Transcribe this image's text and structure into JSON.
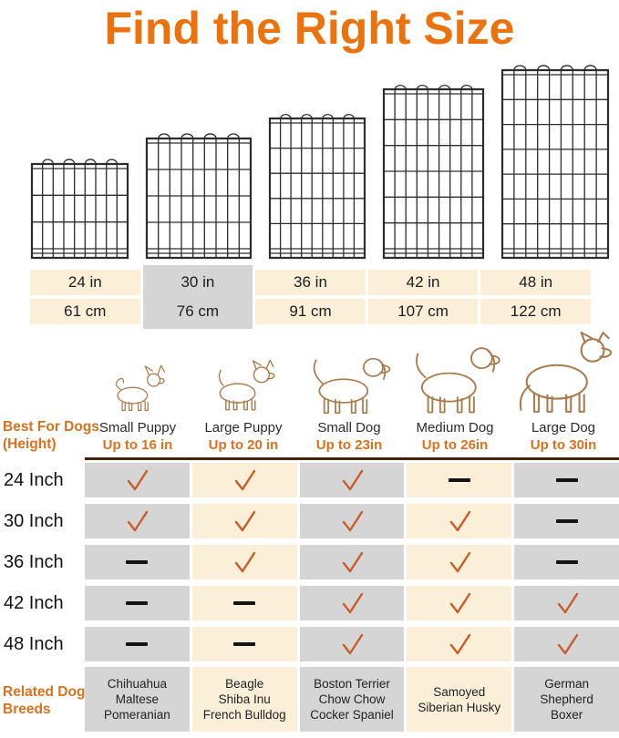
{
  "title": "Find the Right Size",
  "colors": {
    "accent_orange": "#EC720E",
    "label_orange": "#D9711F",
    "check_orange": "#C75D2A",
    "cell_cream": "#FBEFD8",
    "cell_gray": "#D5D5D5",
    "divider_brown": "#45210F",
    "dog_outline_tan": "#AA7C4D",
    "wire_dark": "#2d2d2d"
  },
  "size_table": {
    "columns": [
      {
        "inches": "24 in",
        "cm": "61 cm",
        "highlighted": false
      },
      {
        "inches": "30 in",
        "cm": "76 cm",
        "highlighted": true
      },
      {
        "inches": "36 in",
        "cm": "91 cm",
        "highlighted": false
      },
      {
        "inches": "42 in",
        "cm": "107 cm",
        "highlighted": false
      },
      {
        "inches": "48 in",
        "cm": "122 cm",
        "highlighted": false
      }
    ]
  },
  "row_header": {
    "line1": "Best For Dogs",
    "line2": "(Height)"
  },
  "dog_columns": [
    {
      "name": "Small Puppy",
      "max_height": "Up to 16 in"
    },
    {
      "name": "Large Puppy",
      "max_height": "Up to 20 in"
    },
    {
      "name": "Small Dog",
      "max_height": "Up to 23in"
    },
    {
      "name": "Medium Dog",
      "max_height": "Up to 26in"
    },
    {
      "name": "Large Dog",
      "max_height": "Up to 30in"
    }
  ],
  "compatibility": {
    "rows": [
      {
        "label": "24 Inch",
        "cells": [
          "check",
          "check",
          "check",
          "dash",
          "dash"
        ]
      },
      {
        "label": "30 Inch",
        "cells": [
          "check",
          "check",
          "check",
          "check",
          "dash"
        ]
      },
      {
        "label": "36 Inch",
        "cells": [
          "dash",
          "check",
          "check",
          "check",
          "dash"
        ]
      },
      {
        "label": "42 Inch",
        "cells": [
          "dash",
          "dash",
          "check",
          "check",
          "check"
        ]
      },
      {
        "label": "48 Inch",
        "cells": [
          "dash",
          "dash",
          "check",
          "check",
          "check"
        ]
      }
    ]
  },
  "breeds": {
    "header": {
      "line1": "Related Dog",
      "line2": "Breeds"
    },
    "cells": [
      [
        "Chihuahua",
        "Maltese",
        "Pomeranian"
      ],
      [
        "Beagle",
        "Shiba Inu",
        "French Bulldog"
      ],
      [
        "Boston Terrier",
        "Chow Chow",
        "Cocker Spaniel"
      ],
      [
        "Samoyed",
        "Siberian Husky"
      ],
      [
        "German",
        "Shepherd",
        "Boxer"
      ]
    ]
  },
  "chart_data": {
    "type": "table",
    "title": "Find the Right Size",
    "panel_heights_in": [
      24,
      30,
      36,
      42,
      48
    ],
    "panel_heights_cm": [
      61,
      76,
      91,
      107,
      122
    ],
    "highlighted_size_in": 30,
    "dog_categories": [
      {
        "name": "Small Puppy",
        "max_height_in": 16,
        "example_breeds": [
          "Chihuahua",
          "Maltese",
          "Pomeranian"
        ]
      },
      {
        "name": "Large Puppy",
        "max_height_in": 20,
        "example_breeds": [
          "Beagle",
          "Shiba Inu",
          "French Bulldog"
        ]
      },
      {
        "name": "Small Dog",
        "max_height_in": 23,
        "example_breeds": [
          "Boston Terrier",
          "Chow Chow",
          "Cocker Spaniel"
        ]
      },
      {
        "name": "Medium Dog",
        "max_height_in": 26,
        "example_breeds": [
          "Samoyed",
          "Siberian Husky"
        ]
      },
      {
        "name": "Large Dog",
        "max_height_in": 30,
        "example_breeds": [
          "German Shepherd",
          "Boxer"
        ]
      }
    ],
    "suitability_matrix": {
      "row_labels": [
        "24 Inch",
        "30 Inch",
        "36 Inch",
        "42 Inch",
        "48 Inch"
      ],
      "column_labels": [
        "Small Puppy",
        "Large Puppy",
        "Small Dog",
        "Medium Dog",
        "Large Dog"
      ],
      "values": [
        [
          1,
          1,
          1,
          0,
          0
        ],
        [
          1,
          1,
          1,
          1,
          0
        ],
        [
          0,
          1,
          1,
          1,
          0
        ],
        [
          0,
          0,
          1,
          1,
          1
        ],
        [
          0,
          0,
          1,
          1,
          1
        ]
      ]
    }
  }
}
